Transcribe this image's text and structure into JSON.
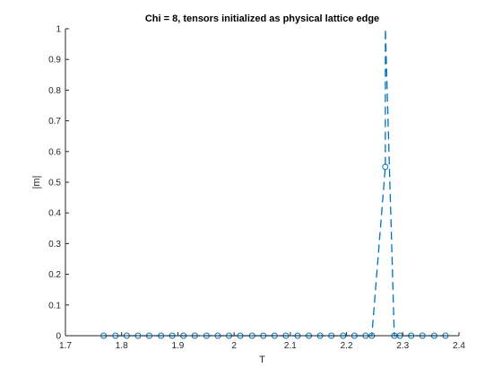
{
  "chart_data": {
    "type": "line",
    "title": "Chi = 8, tensors initialized as physical lattice edge",
    "xlabel": "T",
    "ylabel": "|m|",
    "xlim": [
      1.7,
      2.4
    ],
    "ylim": [
      0,
      1
    ],
    "xticks": [
      "1.7",
      "1.8",
      "1.9",
      "2",
      "2.1",
      "2.2",
      "2.3",
      "2.4"
    ],
    "yticks": [
      "0",
      "0.1",
      "0.2",
      "0.3",
      "0.4",
      "0.5",
      "0.6",
      "0.7",
      "0.8",
      "0.9",
      "1"
    ],
    "grid": false,
    "legend": "none",
    "series": [
      {
        "marker": "circle",
        "line_style": "dashed",
        "color": "#0072BD",
        "x": [
          1.768,
          1.789,
          1.809,
          1.829,
          1.849,
          1.87,
          1.89,
          1.91,
          1.93,
          1.951,
          1.971,
          1.991,
          2.011,
          2.032,
          2.052,
          2.072,
          2.092,
          2.113,
          2.133,
          2.153,
          2.173,
          2.194,
          2.214,
          2.234,
          2.245,
          2.269,
          2.2691,
          2.285,
          2.295,
          2.315,
          2.335,
          2.356,
          2.376
        ],
        "y": [
          0,
          0,
          0,
          0,
          0,
          0,
          0,
          0,
          0,
          0,
          0,
          0,
          0,
          0,
          0,
          0,
          0,
          0,
          0,
          0,
          0,
          0,
          0,
          0,
          0,
          0.55,
          1.0,
          0,
          0,
          0,
          0,
          0,
          0
        ],
        "markers_shown": [
          true,
          true,
          true,
          true,
          true,
          true,
          true,
          true,
          true,
          true,
          true,
          true,
          true,
          true,
          true,
          true,
          true,
          true,
          true,
          true,
          true,
          true,
          true,
          true,
          true,
          true,
          false,
          true,
          true,
          true,
          true,
          true,
          true
        ]
      }
    ]
  }
}
